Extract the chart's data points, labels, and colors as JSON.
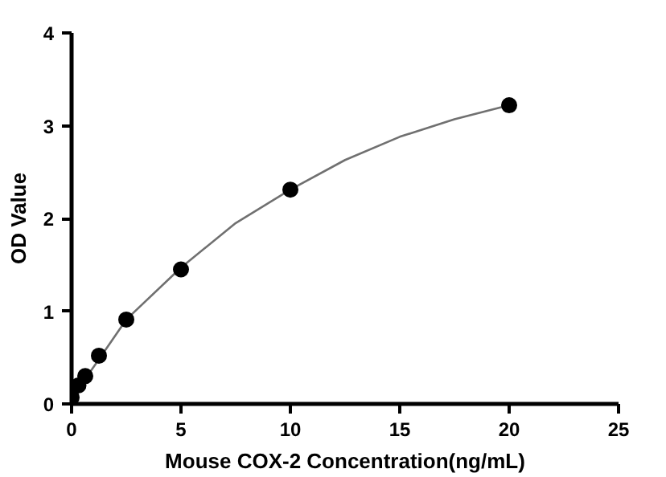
{
  "chart_data": {
    "type": "scatter",
    "xlabel": "Mouse COX-2 Concentration(ng/mL)",
    "ylabel": "OD Value",
    "xlim": [
      0,
      25
    ],
    "xticks": [
      0,
      5,
      10,
      15,
      20,
      25
    ],
    "ylim": [
      0,
      4
    ],
    "yticks": [
      0,
      1,
      2,
      3,
      4
    ],
    "grid": false,
    "series": [
      {
        "marker": "circle",
        "color": "#000000",
        "x": [
          0,
          0.3125,
          0.625,
          1.25,
          2.5,
          5,
          10,
          20
        ],
        "values": [
          0.07,
          0.2,
          0.3,
          0.52,
          0.91,
          1.45,
          2.31,
          3.22
        ]
      },
      {
        "type": "line",
        "color": "#707070",
        "line_style": "solid",
        "x": [
          0,
          0.625,
          1.25,
          2.5,
          5,
          7.5,
          10,
          12.5,
          15,
          17.5,
          20
        ],
        "values": [
          0.07,
          0.27,
          0.48,
          0.91,
          1.47,
          1.95,
          2.31,
          2.63,
          2.88,
          3.07,
          3.22
        ]
      }
    ]
  }
}
